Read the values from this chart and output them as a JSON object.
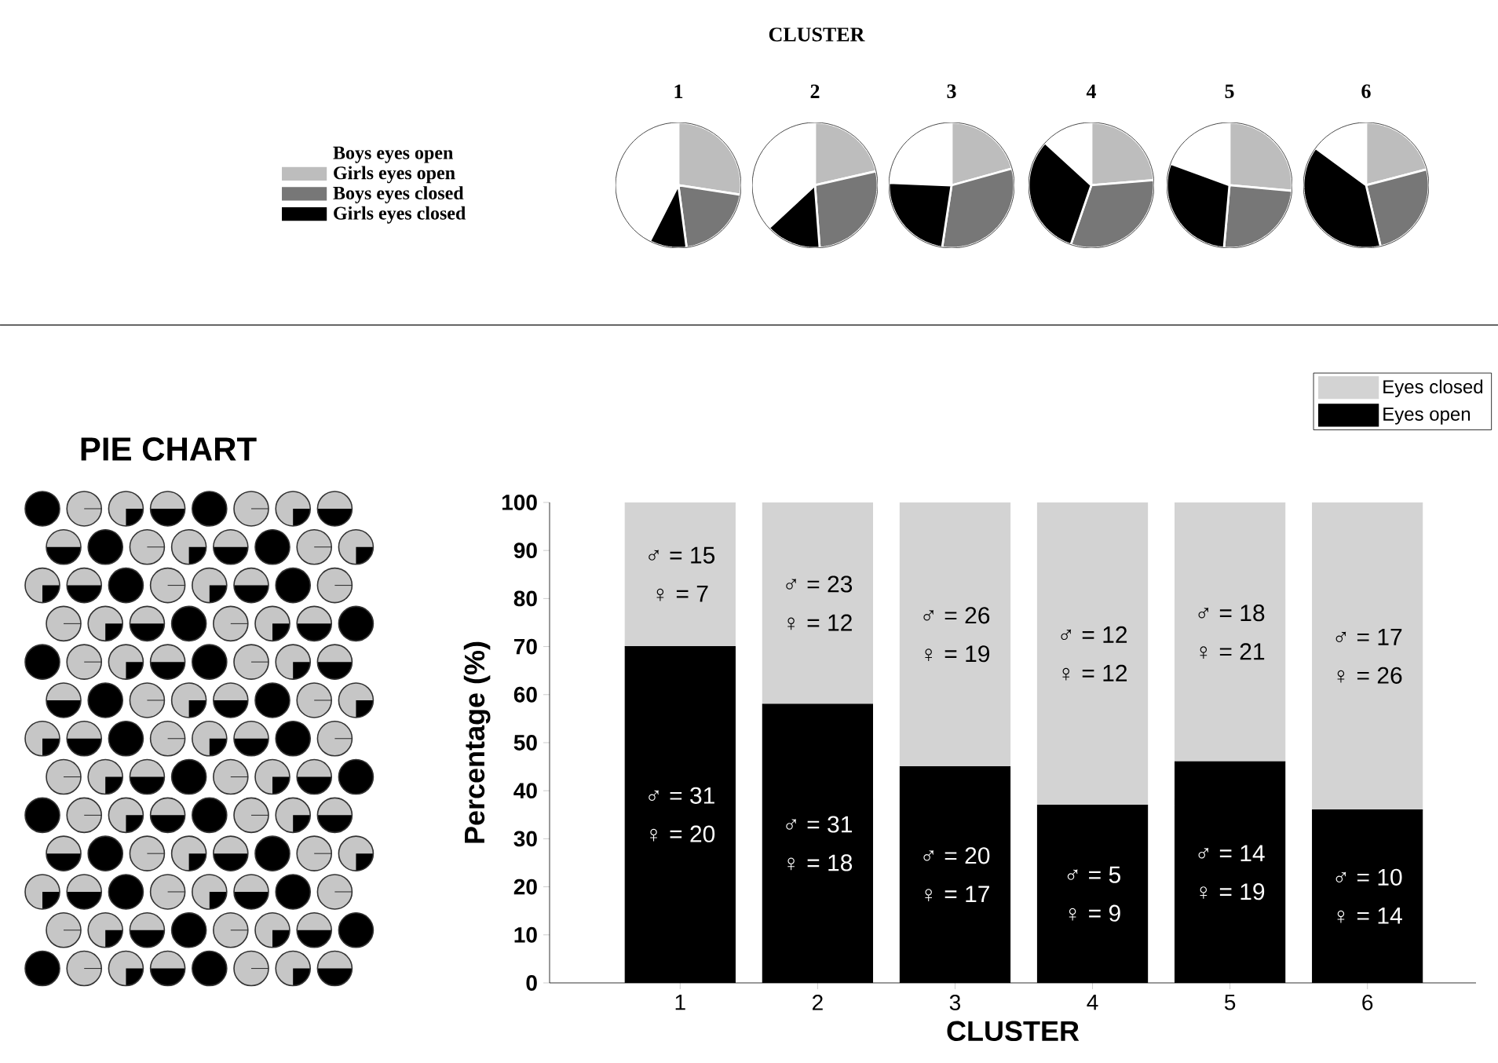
{
  "chart_data": [
    {
      "type": "other",
      "title": "CLUSTER"
    },
    {
      "type": "pie",
      "title": "1",
      "categories": [
        "Boys eyes open",
        "Girls eyes open",
        "Boys eyes closed",
        "Girls eyes closed"
      ],
      "values": [
        42.5,
        27.4,
        20.5,
        9.6
      ],
      "colors": [
        "#ffffff",
        "#bdbdbd",
        "#777777",
        "#000000"
      ],
      "legend": "left"
    },
    {
      "type": "pie",
      "title": "2",
      "values": [
        36.9,
        21.4,
        27.4,
        14.3
      ],
      "colors": [
        "#ffffff",
        "#bdbdbd",
        "#777777",
        "#000000"
      ]
    },
    {
      "type": "pie",
      "title": "3",
      "values": [
        24.4,
        20.7,
        31.7,
        23.2
      ],
      "colors": [
        "#ffffff",
        "#bdbdbd",
        "#777777",
        "#000000"
      ]
    },
    {
      "type": "pie",
      "title": "4",
      "values": [
        13.2,
        23.7,
        31.6,
        31.5
      ],
      "colors": [
        "#ffffff",
        "#bdbdbd",
        "#777777",
        "#000000"
      ]
    },
    {
      "type": "pie",
      "title": "5",
      "values": [
        19.4,
        26.4,
        25.0,
        29.2
      ],
      "colors": [
        "#ffffff",
        "#bdbdbd",
        "#777777",
        "#000000"
      ]
    },
    {
      "type": "pie",
      "title": "6",
      "values": [
        14.9,
        20.9,
        25.4,
        38.8
      ],
      "colors": [
        "#ffffff",
        "#bdbdbd",
        "#777777",
        "#000000"
      ]
    },
    {
      "type": "other",
      "title": "PIE CHART"
    },
    {
      "type": "bar",
      "stacked": true,
      "categories": [
        "1",
        "2",
        "3",
        "4",
        "5",
        "6"
      ],
      "xlabel": "CLUSTER",
      "ylabel": "Percentage (%)",
      "ylim": [
        0,
        100
      ],
      "yticks": [
        0,
        10,
        20,
        30,
        40,
        50,
        60,
        70,
        80,
        90,
        100
      ],
      "legend": "top right",
      "series": [
        {
          "name": "Eyes open",
          "color": "#000000",
          "values": [
            70,
            58,
            45,
            37,
            46,
            36
          ]
        },
        {
          "name": "Eyes closed",
          "color": "#d3d3d3",
          "values": [
            30,
            42,
            55,
            63,
            54,
            64
          ]
        }
      ],
      "annotations": [
        "♂ = 15",
        "♀ = 7",
        "♂ = 31",
        "♀ = 20",
        "♂ = 23",
        "♀ = 12",
        "♂ = 31",
        "♀ = 18",
        "♂ = 26",
        "♀ = 19",
        "♂ = 20",
        "♀ = 17",
        "♂ = 12",
        "♀ = 12",
        "♂ = 5",
        "♀ = 9",
        "♂ = 18",
        "♀ = 21",
        "♂ = 14",
        "♀ = 19",
        "♂ = 17",
        "♀ = 26",
        "♂ = 10",
        "♀ = 14"
      ]
    }
  ]
}
